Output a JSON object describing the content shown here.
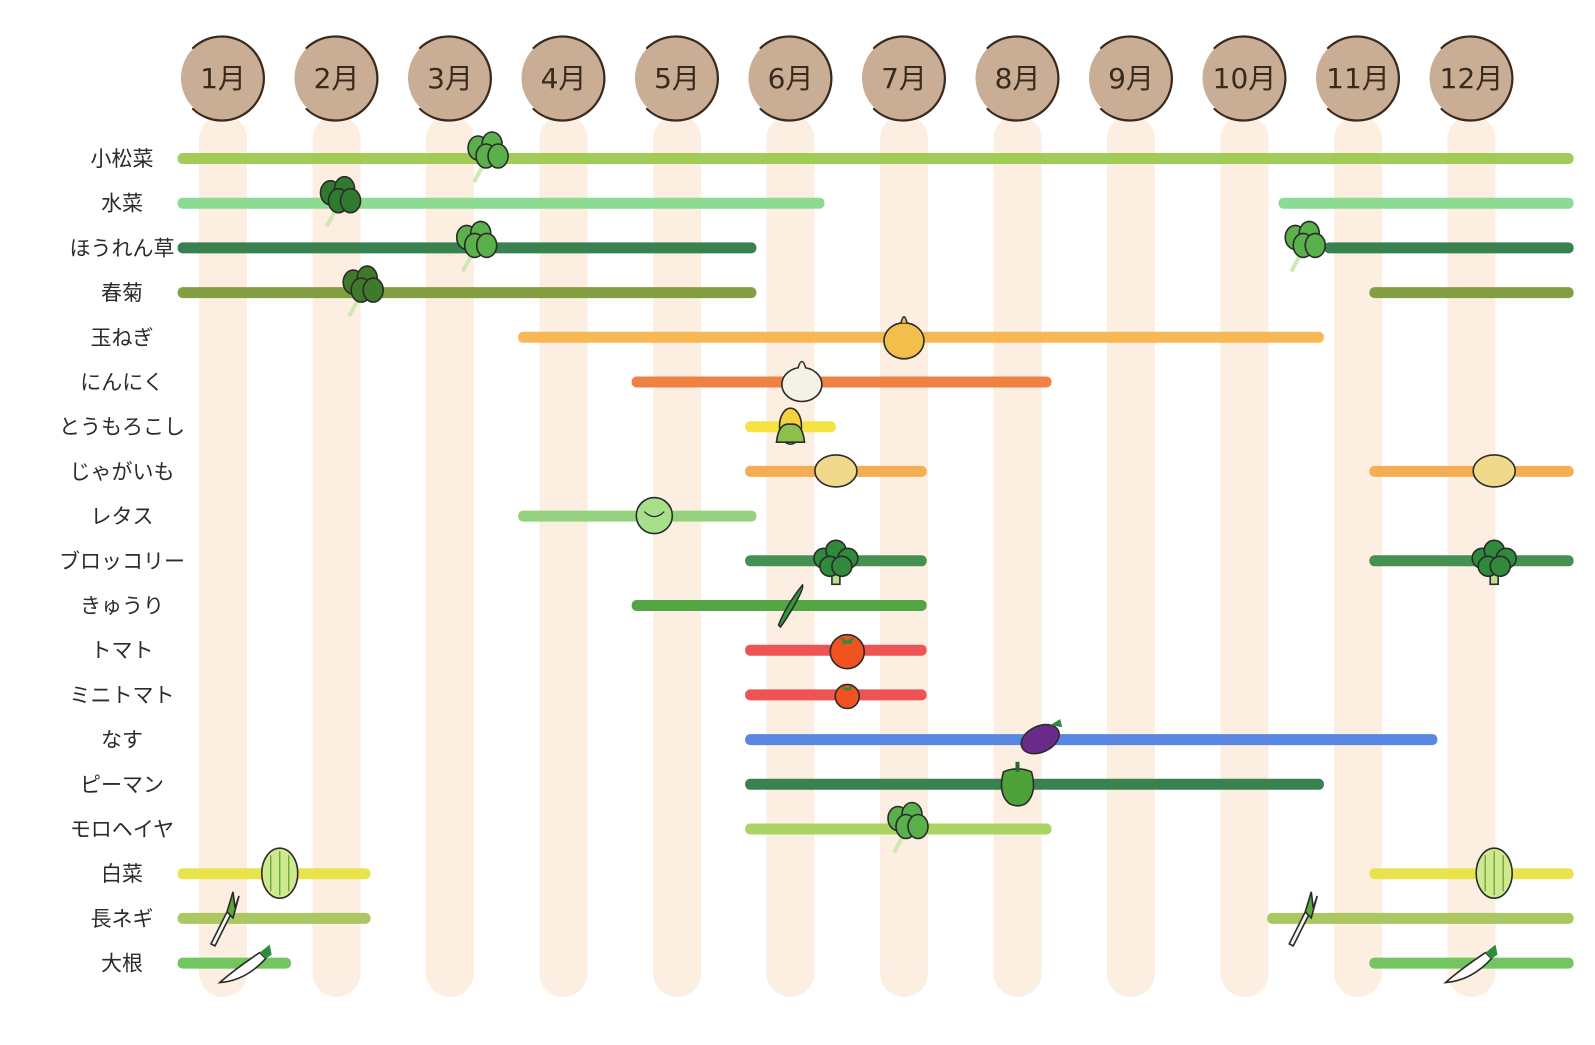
{
  "chart_data": {
    "type": "gantt",
    "title": "",
    "x_unit": "month",
    "months": [
      "1月",
      "2月",
      "3月",
      "4月",
      "5月",
      "6月",
      "7月",
      "8月",
      "9月",
      "10月",
      "11月",
      "12月"
    ],
    "grid": "vertical month columns",
    "rows": [
      {
        "label": "小松菜",
        "color": "#9bc94e",
        "icon": "komatsuna-icon",
        "icon_at": 3.3,
        "periods": [
          [
            0.6,
            12.9
          ]
        ]
      },
      {
        "label": "水菜",
        "color": "#86d98c",
        "icon": "mizuna-icon",
        "icon_at": 2.0,
        "periods": [
          [
            0.6,
            6.3
          ],
          [
            10.3,
            12.9
          ]
        ]
      },
      {
        "label": "ほうれん草",
        "color": "#2f7a48",
        "icon": "spinach-icon",
        "icon_at": 3.2,
        "periods": [
          [
            0.6,
            5.7
          ],
          [
            10.7,
            12.9
          ]
        ],
        "icon2_at": 10.5
      },
      {
        "label": "春菊",
        "color": "#7d9a37",
        "icon": "shungiku-icon",
        "icon_at": 2.2,
        "periods": [
          [
            0.6,
            5.7
          ],
          [
            11.1,
            12.9
          ]
        ]
      },
      {
        "label": "玉ねぎ",
        "color": "#f7b44c",
        "icon": "onion-icon",
        "icon_at": 7.0,
        "periods": [
          [
            3.6,
            10.7
          ]
        ]
      },
      {
        "label": "にんにく",
        "color": "#ef7a3a",
        "icon": "garlic-icon",
        "icon_at": 6.1,
        "periods": [
          [
            4.6,
            8.3
          ]
        ]
      },
      {
        "label": "とうもろこし",
        "color": "#f4e23c",
        "icon": "corn-icon",
        "icon_at": 6.0,
        "periods": [
          [
            5.6,
            6.4
          ]
        ]
      },
      {
        "label": "じゃがいも",
        "color": "#f3a94a",
        "icon": "potato-icon",
        "icon_at": 6.4,
        "periods": [
          [
            5.6,
            7.2
          ],
          [
            11.1,
            12.9
          ]
        ],
        "icon2_at": 12.2
      },
      {
        "label": "レタス",
        "color": "#8fd079",
        "icon": "lettuce-icon",
        "icon_at": 4.8,
        "periods": [
          [
            3.6,
            5.7
          ]
        ]
      },
      {
        "label": "ブロッコリー",
        "color": "#3d8a4b",
        "icon": "broccoli-icon",
        "icon_at": 6.4,
        "periods": [
          [
            5.6,
            7.2
          ],
          [
            11.1,
            12.9
          ]
        ],
        "icon2_at": 12.2
      },
      {
        "label": "きゅうり",
        "color": "#4aa03a",
        "icon": "cucumber-icon",
        "icon_at": 6.0,
        "periods": [
          [
            4.6,
            7.2
          ]
        ]
      },
      {
        "label": "トマト",
        "color": "#ec4b4b",
        "icon": "tomato-icon",
        "icon_at": 6.5,
        "periods": [
          [
            5.6,
            7.2
          ]
        ]
      },
      {
        "label": "ミニトマト",
        "color": "#ec4b4b",
        "icon": "mini-tomato-icon",
        "icon_at": 6.5,
        "periods": [
          [
            5.6,
            7.2
          ]
        ]
      },
      {
        "label": "なす",
        "color": "#4f7fe0",
        "icon": "eggplant-icon",
        "icon_at": 8.2,
        "periods": [
          [
            5.6,
            11.7
          ]
        ]
      },
      {
        "label": "ピーマン",
        "color": "#2f7a48",
        "icon": "pepper-icon",
        "icon_at": 8.0,
        "periods": [
          [
            5.6,
            10.7
          ]
        ]
      },
      {
        "label": "モロヘイヤ",
        "color": "#a7d35b",
        "icon": "moroheiya-icon",
        "icon_at": 7.0,
        "periods": [
          [
            5.6,
            8.3
          ]
        ]
      },
      {
        "label": "白菜",
        "color": "#e7e244",
        "icon": "hakusai-icon",
        "icon_at": 1.5,
        "periods": [
          [
            0.6,
            2.3
          ],
          [
            11.1,
            12.9
          ]
        ],
        "icon2_at": 12.2
      },
      {
        "label": "長ネギ",
        "color": "#a5c45a",
        "icon": "leek-icon",
        "icon_at": 1.0,
        "periods": [
          [
            0.6,
            2.3
          ],
          [
            10.2,
            12.9
          ]
        ],
        "icon2_at": 10.5
      },
      {
        "label": "大根",
        "color": "#6cc25a",
        "icon": "daikon-icon",
        "icon_at": 1.2,
        "periods": [
          [
            0.6,
            1.6
          ],
          [
            11.1,
            12.9
          ]
        ],
        "icon2_at": 12.0
      }
    ]
  }
}
